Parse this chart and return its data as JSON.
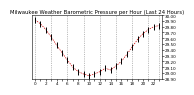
{
  "title": "Milwaukee Weather Barometric Pressure per Hour (Last 24 Hours)",
  "hours": [
    0,
    1,
    2,
    3,
    4,
    5,
    6,
    7,
    8,
    9,
    10,
    11,
    12,
    13,
    14,
    15,
    16,
    17,
    18,
    19,
    20,
    21,
    22,
    23
  ],
  "pressure": [
    29.92,
    29.85,
    29.75,
    29.62,
    29.48,
    29.35,
    29.22,
    29.1,
    29.02,
    28.98,
    28.95,
    28.98,
    29.02,
    29.08,
    29.05,
    29.12,
    29.2,
    29.32,
    29.45,
    29.58,
    29.68,
    29.75,
    29.8,
    29.82
  ],
  "line_color": "#cc0000",
  "marker_color": "#000000",
  "bg_color": "#ffffff",
  "grid_color": "#888888",
  "title_color": "#000000",
  "ylim_min": 28.9,
  "ylim_max": 30.0,
  "title_fontsize": 3.8,
  "tick_fontsize": 3.0,
  "ytick_values": [
    28.9,
    29.0,
    29.1,
    29.2,
    29.3,
    29.4,
    29.5,
    29.6,
    29.7,
    29.8,
    29.9,
    30.0
  ],
  "vgrid_positions": [
    0,
    3,
    6,
    9,
    12,
    15,
    18,
    21,
    23
  ]
}
